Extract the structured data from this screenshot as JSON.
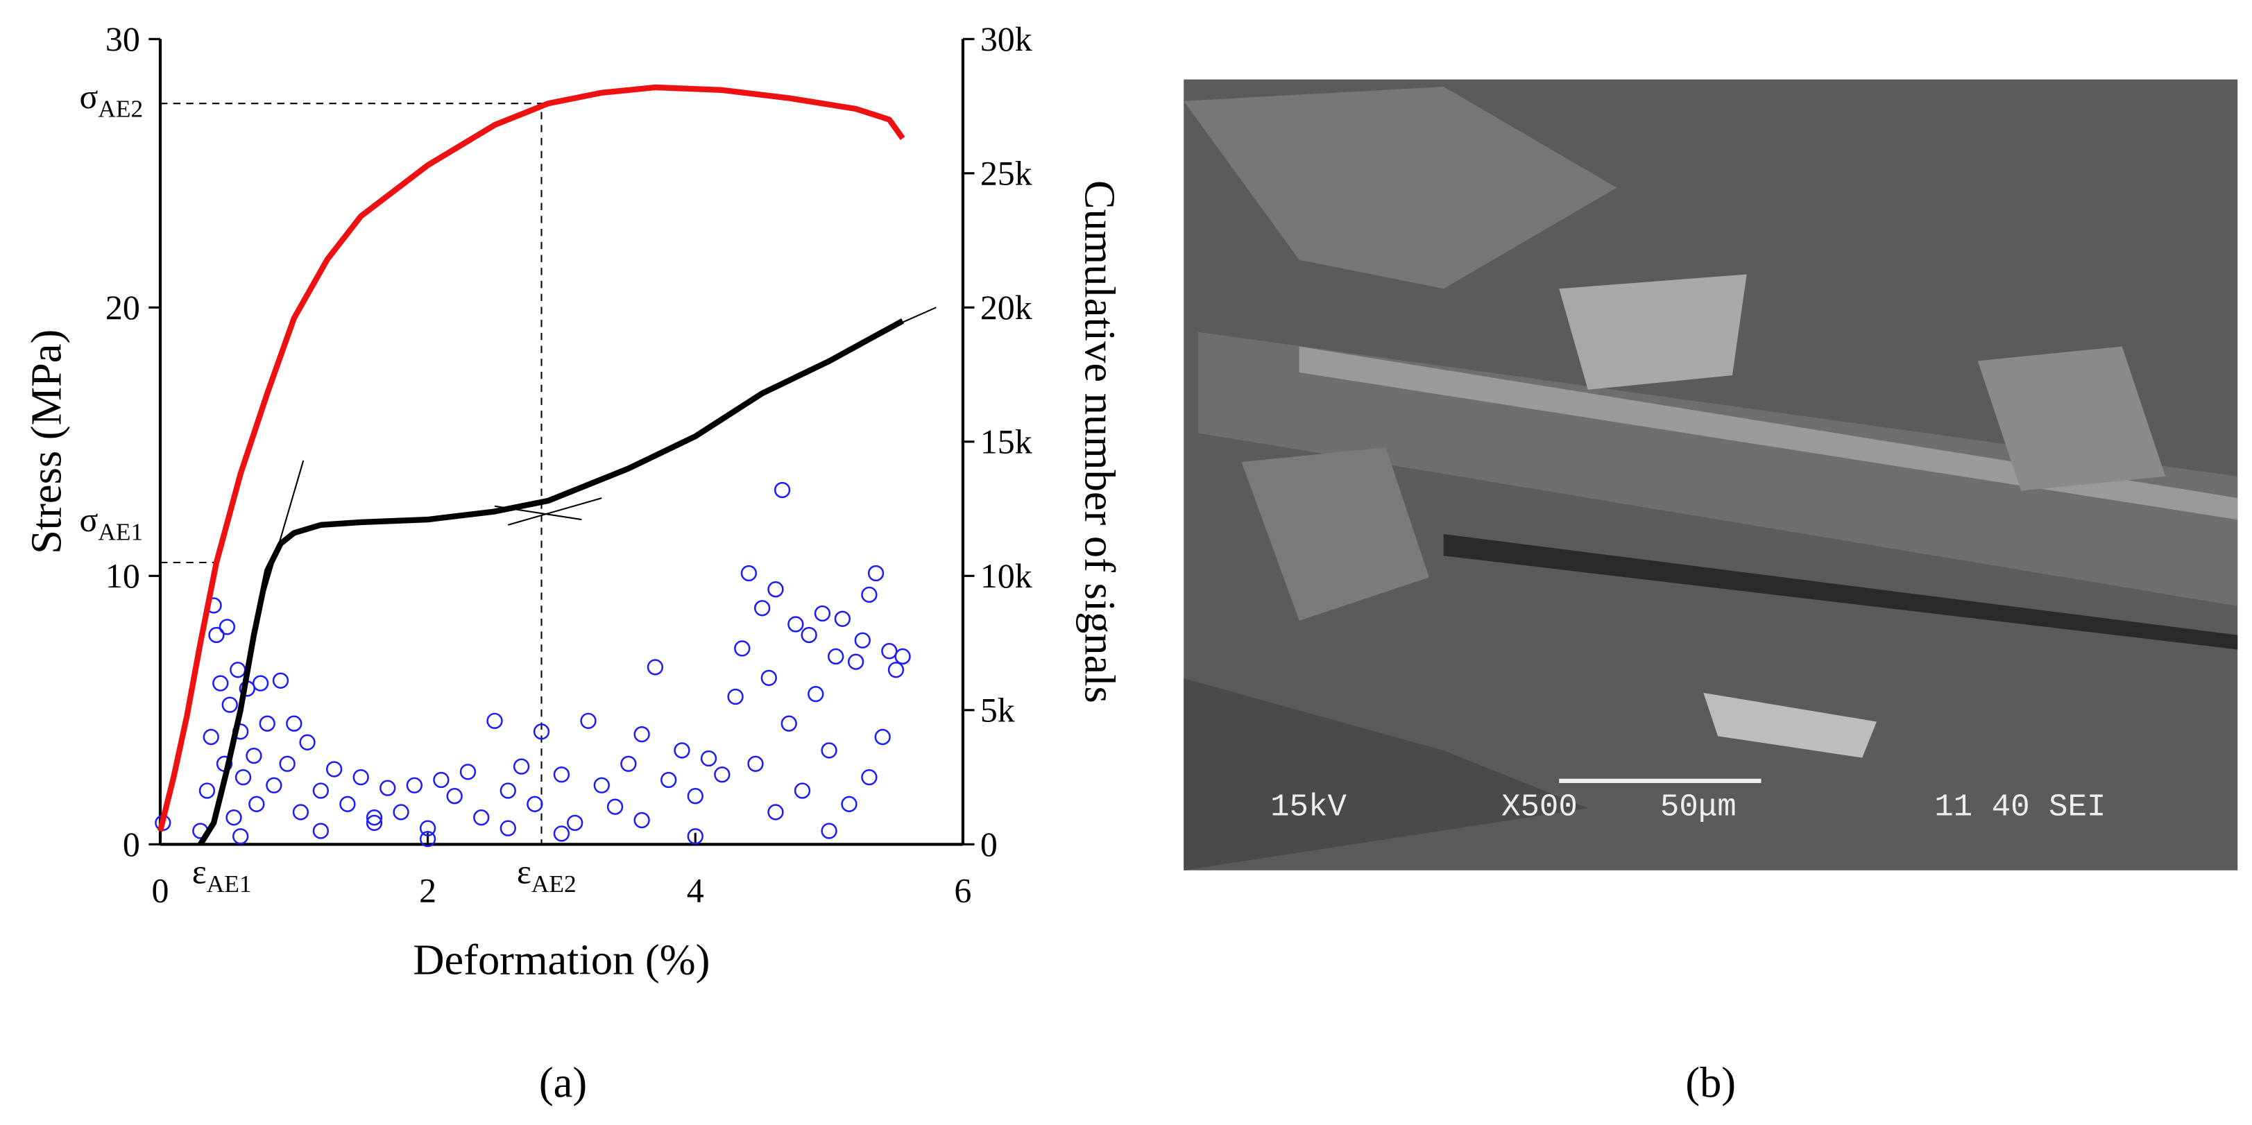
{
  "chart_data": {
    "type": "line",
    "x_label": "Deformation (%)",
    "y_label": "Stress (MPa)",
    "y2_label": "Cumulative number of signals",
    "caption": "(a)",
    "xlim": [
      0,
      6
    ],
    "xticks": [
      0,
      2,
      4,
      6
    ],
    "ylim": [
      0,
      30
    ],
    "yticks": [
      0,
      10,
      20,
      30
    ],
    "y2lim": [
      0,
      30000
    ],
    "y2ticks": [
      {
        "value": 0,
        "label": "0"
      },
      {
        "value": 5000,
        "label": "5k"
      },
      {
        "value": 10000,
        "label": "10k"
      },
      {
        "value": 15000,
        "label": "15k"
      },
      {
        "value": 20000,
        "label": "20k"
      },
      {
        "value": 25000,
        "label": "25k"
      },
      {
        "value": 30000,
        "label": "30k"
      }
    ],
    "series": [
      {
        "type": "line",
        "color": "#ee1111",
        "axis": "y",
        "x": [
          0,
          0.1,
          0.2,
          0.3,
          0.42,
          0.6,
          0.8,
          1.0,
          1.25,
          1.5,
          2.0,
          2.5,
          2.9,
          3.3,
          3.7,
          4.2,
          4.7,
          5.2,
          5.45,
          5.55
        ],
        "values": [
          0.5,
          2.5,
          4.8,
          7.5,
          10.5,
          13.8,
          16.8,
          19.6,
          21.8,
          23.4,
          25.3,
          26.8,
          27.6,
          28.0,
          28.2,
          28.1,
          27.8,
          27.4,
          27.0,
          26.3
        ]
      },
      {
        "type": "line",
        "color": "#000000",
        "axis": "y2",
        "x": [
          0.3,
          0.4,
          0.5,
          0.6,
          0.7,
          0.8,
          0.9,
          1.0,
          1.2,
          1.5,
          2.0,
          2.5,
          2.9,
          3.5,
          4.0,
          4.5,
          5.0,
          5.55
        ],
        "values": [
          0,
          800,
          2800,
          5000,
          7800,
          10200,
          11200,
          11600,
          11900,
          12000,
          12100,
          12400,
          12800,
          14000,
          15200,
          16800,
          18000,
          19500
        ]
      },
      {
        "type": "scatter",
        "color": "#1a1aff",
        "axis": "y2",
        "x": [
          0.02,
          0.3,
          0.35,
          0.38,
          0.4,
          0.42,
          0.45,
          0.48,
          0.5,
          0.52,
          0.55,
          0.58,
          0.6,
          0.62,
          0.65,
          0.7,
          0.72,
          0.75,
          0.8,
          0.85,
          0.9,
          0.95,
          1.0,
          1.05,
          1.1,
          1.2,
          1.3,
          1.4,
          1.5,
          1.6,
          1.7,
          1.8,
          1.9,
          2.0,
          2.1,
          2.2,
          2.3,
          2.4,
          2.5,
          2.6,
          2.7,
          2.8,
          2.85,
          3.0,
          3.1,
          3.2,
          3.3,
          3.4,
          3.5,
          3.6,
          3.7,
          3.8,
          3.9,
          4.0,
          4.1,
          4.2,
          4.3,
          4.35,
          4.4,
          4.45,
          4.5,
          4.55,
          4.6,
          4.65,
          4.7,
          4.75,
          4.8,
          4.85,
          4.9,
          4.95,
          5.0,
          5.05,
          5.1,
          5.15,
          5.2,
          5.25,
          5.3,
          5.35,
          5.4,
          5.45,
          5.5,
          5.55,
          0.6,
          1.2,
          2.0,
          3.0,
          4.0,
          5.0,
          1.6,
          2.6,
          3.6,
          4.6,
          5.3
        ],
        "values": [
          800,
          500,
          2000,
          4000,
          8900,
          7800,
          6000,
          3000,
          8100,
          5200,
          1000,
          6500,
          4200,
          2500,
          5800,
          3300,
          1500,
          6000,
          4500,
          2200,
          6100,
          3000,
          4500,
          1200,
          3800,
          2000,
          2800,
          1500,
          2500,
          800,
          2100,
          1200,
          2200,
          600,
          2400,
          1800,
          2700,
          1000,
          4600,
          2000,
          2900,
          1500,
          4200,
          2600,
          800,
          4600,
          2200,
          1400,
          3000,
          4100,
          6600,
          2400,
          3500,
          1800,
          3200,
          2600,
          5500,
          7300,
          10100,
          3000,
          8800,
          6200,
          9500,
          13200,
          4500,
          8200,
          2000,
          7800,
          5600,
          8600,
          3500,
          7000,
          8400,
          1500,
          6800,
          7600,
          9300,
          10100,
          4000,
          7200,
          6500,
          7000,
          300,
          500,
          200,
          400,
          300,
          500,
          1000,
          600,
          900,
          1200,
          2500
        ]
      }
    ],
    "tangent_lines": [
      {
        "x": [
          0.7,
          1.07
        ],
        "values": [
          8000,
          14300
        ]
      },
      {
        "x": [
          2.6,
          3.3
        ],
        "values": [
          11900,
          12900
        ]
      },
      {
        "x": [
          2.5,
          3.15
        ],
        "values": [
          12600,
          12100
        ]
      },
      {
        "x": [
          5.3,
          5.8
        ],
        "values": [
          18900,
          20000
        ]
      }
    ],
    "dashed_lines": [
      {
        "x": [
          0,
          2.85,
          2.85
        ],
        "values": [
          27.6,
          27.6,
          0
        ]
      },
      {
        "x": [
          0,
          0.44
        ],
        "values": [
          10.5,
          10.5
        ]
      }
    ],
    "annotations": [
      {
        "symbol": "σ",
        "subscript": "AE2"
      },
      {
        "symbol": "σ",
        "subscript": "AE1"
      },
      {
        "symbol": "ε",
        "subscript": "AE1"
      },
      {
        "symbol": "ε",
        "subscript": "AE2"
      }
    ]
  },
  "image_panel": {
    "caption": "(b)",
    "labels": [
      "15kV",
      "X500",
      "50μm",
      "11 40 SEI"
    ]
  }
}
